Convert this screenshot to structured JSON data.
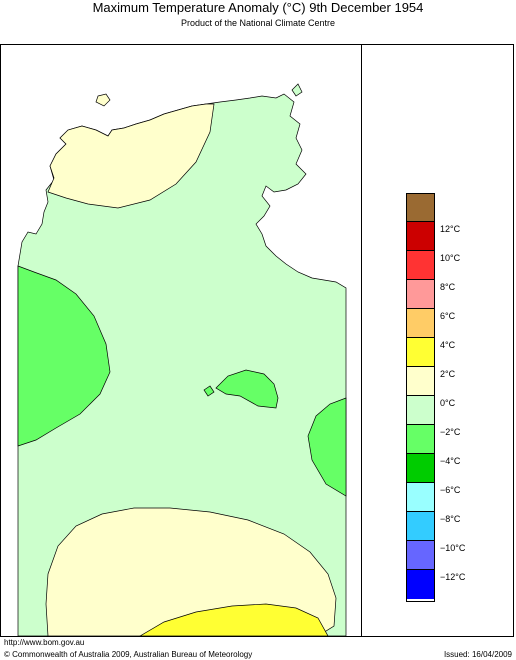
{
  "header": {
    "title": "Maximum Temperature Anomaly (°C)  9th December 1954",
    "subtitle": "Product of the National Climate Centre"
  },
  "legend": [
    {
      "label": "",
      "color": "#9a6a32"
    },
    {
      "label": "12°C",
      "color": "#cc0000"
    },
    {
      "label": "10°C",
      "color": "#ff3333"
    },
    {
      "label": "8°C",
      "color": "#ff9999"
    },
    {
      "label": "6°C",
      "color": "#ffcc66"
    },
    {
      "label": "4°C",
      "color": "#ffff33"
    },
    {
      "label": "2°C",
      "color": "#ffffcc"
    },
    {
      "label": "0°C",
      "color": "#ccffcc"
    },
    {
      "label": "−2°C",
      "color": "#66ff66"
    },
    {
      "label": "−4°C",
      "color": "#00cc00"
    },
    {
      "label": "−6°C",
      "color": "#99ffff"
    },
    {
      "label": "−8°C",
      "color": "#33ccff"
    },
    {
      "label": "−10°C",
      "color": "#6666ff"
    },
    {
      "label": "−12°C",
      "color": "#0000ff"
    }
  ],
  "footer": {
    "url": "http://www.bom.gov.au",
    "copyright": "© Commonwealth of Australia 2009, Australian Bureau of Meteorology",
    "issued": "Issued: 16/04/2009"
  }
}
